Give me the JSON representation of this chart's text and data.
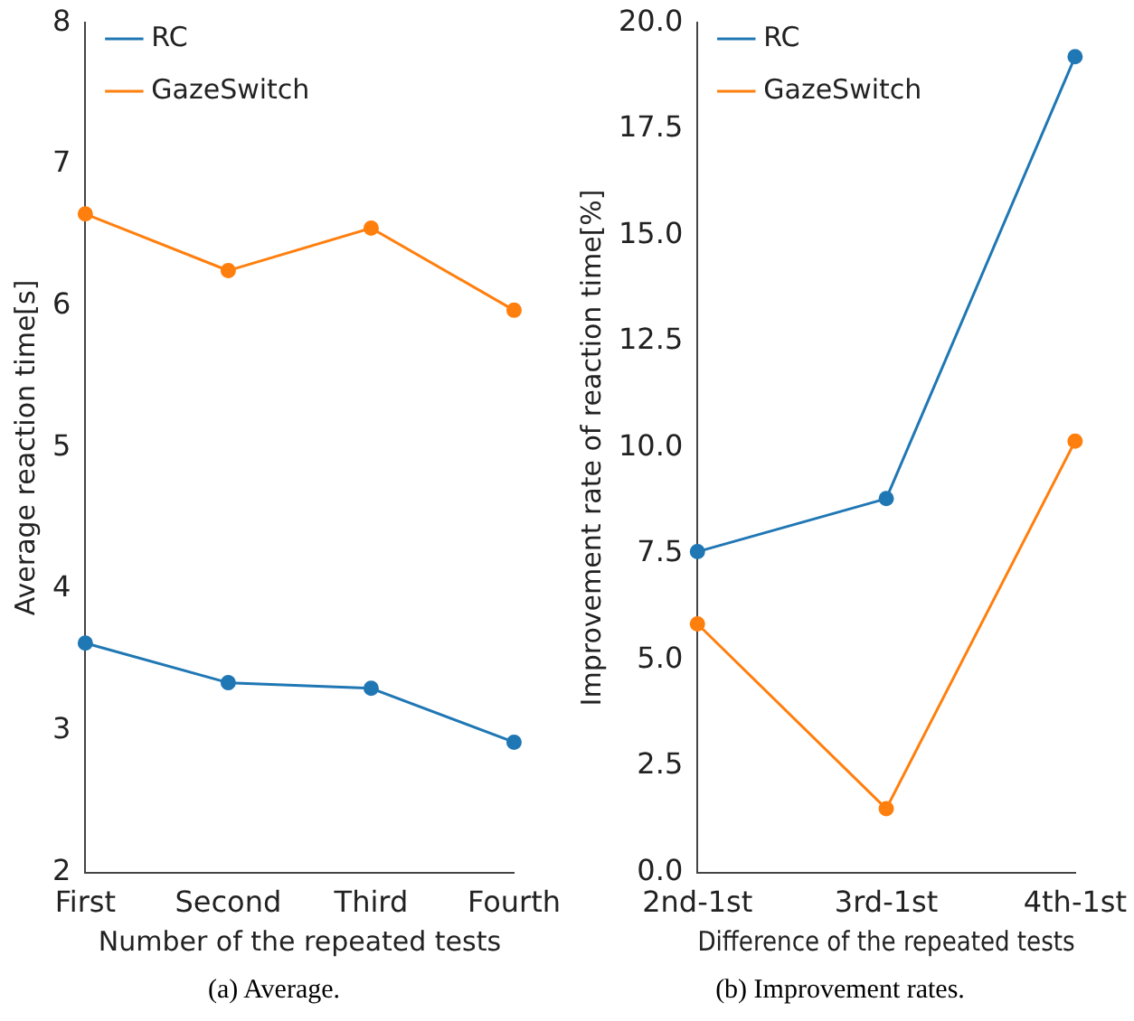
{
  "chart_data": [
    {
      "type": "line",
      "title": "(a) Average.",
      "xlabel": "Number of the repeated tests",
      "ylabel": "Average reaction time[s]",
      "categories": [
        "First",
        "Second",
        "Third",
        "Fourth"
      ],
      "series": [
        {
          "name": "RC",
          "color": "#1f77b4",
          "values": [
            3.62,
            3.34,
            3.3,
            2.92
          ]
        },
        {
          "name": "GazeSwitch",
          "color": "#ff7f0e",
          "values": [
            6.65,
            6.25,
            6.55,
            5.97
          ]
        }
      ],
      "ylim": [
        2,
        8
      ],
      "yticks": [
        2,
        3,
        4,
        5,
        6,
        7,
        8
      ],
      "grid": false,
      "legend": "top left",
      "marker": "circle",
      "line_style": "solid"
    },
    {
      "type": "line",
      "title": "(b) Improvement rates.",
      "xlabel": "Difference of the repeated tests",
      "ylabel": "Improvement rate of reaction time[%]",
      "categories": [
        "2nd-1st",
        "3rd-1st",
        "4th-1st"
      ],
      "series": [
        {
          "name": "RC",
          "color": "#1f77b4",
          "values": [
            7.55,
            8.8,
            19.2
          ]
        },
        {
          "name": "GazeSwitch",
          "color": "#ff7f0e",
          "values": [
            5.85,
            1.5,
            10.15
          ]
        }
      ],
      "ylim": [
        0,
        20
      ],
      "yticks": [
        {
          "value": 0,
          "label": "0.0"
        },
        {
          "value": 2.5,
          "label": "2.5"
        },
        {
          "value": 5,
          "label": "5.0"
        },
        {
          "value": 7.5,
          "label": "7.5"
        },
        {
          "value": 10,
          "label": "10.0"
        },
        {
          "value": 12.5,
          "label": "12.5"
        },
        {
          "value": 15,
          "label": "15.0"
        },
        {
          "value": 17.5,
          "label": "17.5"
        },
        {
          "value": 20,
          "label": "20.0"
        }
      ],
      "grid": false,
      "legend": "top left",
      "marker": "circle",
      "line_style": "solid"
    }
  ]
}
